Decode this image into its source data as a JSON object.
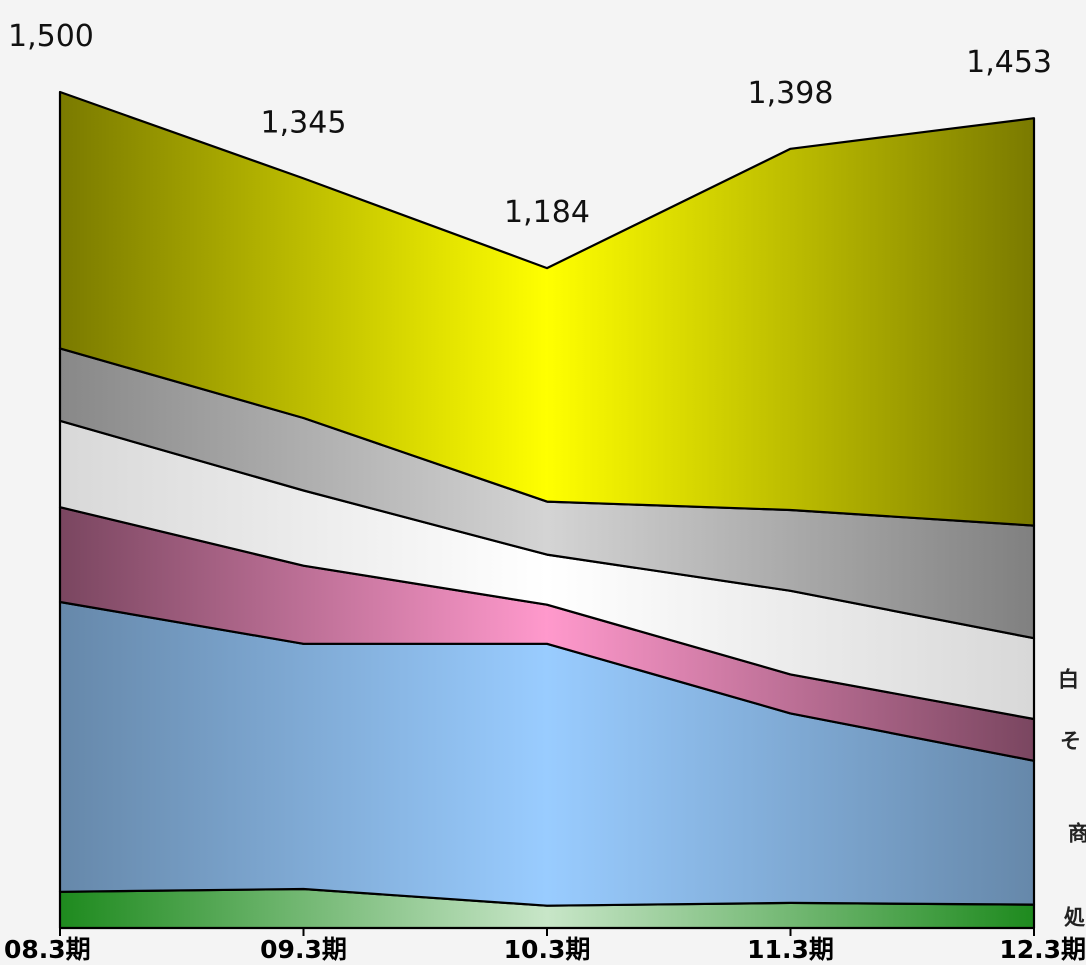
{
  "chart_data": {
    "type": "area",
    "stacked": true,
    "categories": [
      "08.3期",
      "09.3期",
      "10.3期",
      "11.3期",
      "12.3期"
    ],
    "totals": [
      1500,
      1345,
      1184,
      1398,
      1453
    ],
    "total_labels": [
      "1,500",
      "1,345",
      "1,184",
      "1,398",
      "1,453"
    ],
    "ylim": [
      0,
      1500
    ],
    "grid": false,
    "series": [
      {
        "name": "処",
        "values": [
          65,
          70,
          40,
          45,
          42
        ],
        "color": "#1e8a1e"
      },
      {
        "name": "商",
        "values": [
          520,
          440,
          470,
          340,
          258
        ],
        "color": "#99ccff"
      },
      {
        "name": "そ",
        "values": [
          170,
          140,
          70,
          70,
          75
        ],
        "color": "#ff99cc"
      },
      {
        "name": "白",
        "values": [
          155,
          135,
          90,
          150,
          145
        ],
        "color": "#ffffff"
      },
      {
        "name": "",
        "values": [
          130,
          130,
          95,
          145,
          202
        ],
        "color": "#c0c0c0"
      },
      {
        "name": "",
        "values": [
          460,
          430,
          419,
          648,
          731
        ],
        "color": "#ffff00"
      }
    ]
  }
}
